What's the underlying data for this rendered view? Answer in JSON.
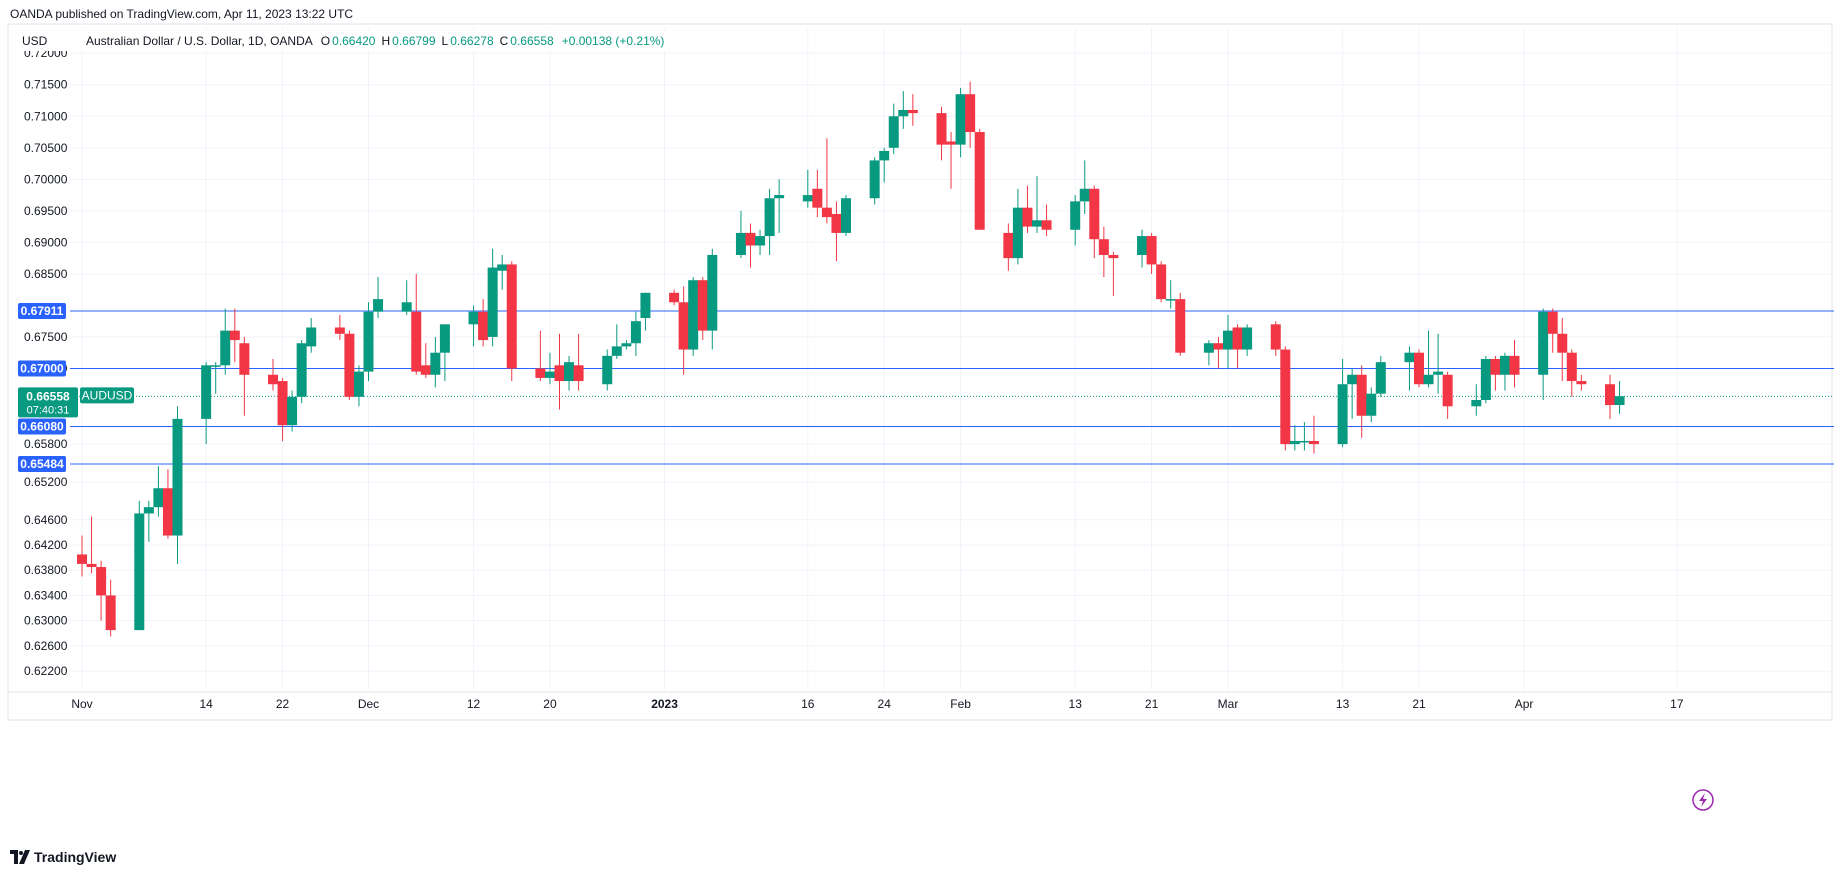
{
  "header": {
    "published": "OANDA published on TradingView.com, Apr 11, 2023 13:22 UTC"
  },
  "footer": {
    "brand": "TradingView",
    "logo_icon": "tradingview-logo-icon"
  },
  "legend": {
    "currency": "USD",
    "symbol_name": "Australian Dollar / U.S. Dollar, 1D, OANDA",
    "o_label": "O",
    "o_value": "0.66420",
    "h_label": "H",
    "h_value": "0.66799",
    "l_label": "L",
    "l_value": "0.66278",
    "c_label": "C",
    "c_value": "0.66558",
    "change": "+0.00138 (+0.21%)"
  },
  "colors": {
    "up": "#089981",
    "down": "#f23645",
    "hline": "#2962ff",
    "grid": "#f0f3fa",
    "text": "#131722"
  },
  "chart_data": {
    "type": "candlestick",
    "symbol": "AUDUSD",
    "ylim": [
      0.619,
      0.724
    ],
    "ytick_labels": [
      "0.72000",
      "0.71500",
      "0.71000",
      "0.70500",
      "0.70000",
      "0.69500",
      "0.69000",
      "0.68500",
      "0.67500",
      "0.67000",
      "0.65800",
      "0.65200",
      "0.64600",
      "0.64200",
      "0.63800",
      "0.63400",
      "0.63000",
      "0.62600",
      "0.62200"
    ],
    "xtick_labels": [
      {
        "label": "Nov",
        "date": "2022-11-01"
      },
      {
        "label": "14",
        "date": "2022-11-14"
      },
      {
        "label": "22",
        "date": "2022-11-22"
      },
      {
        "label": "Dec",
        "date": "2022-12-01"
      },
      {
        "label": "12",
        "date": "2022-12-12"
      },
      {
        "label": "20",
        "date": "2022-12-20"
      },
      {
        "label": "2023",
        "date": "2023-01-01"
      },
      {
        "label": "16",
        "date": "2023-01-16"
      },
      {
        "label": "24",
        "date": "2023-01-24"
      },
      {
        "label": "Feb",
        "date": "2023-02-01"
      },
      {
        "label": "13",
        "date": "2023-02-13"
      },
      {
        "label": "21",
        "date": "2023-02-21"
      },
      {
        "label": "Mar",
        "date": "2023-03-01"
      },
      {
        "label": "13",
        "date": "2023-03-13"
      },
      {
        "label": "21",
        "date": "2023-03-21"
      },
      {
        "label": "Apr",
        "date": "2023-04-01"
      },
      {
        "label": "17",
        "date": "2023-04-17"
      }
    ],
    "horizontal_lines": [
      {
        "value": 0.67911,
        "label": "0.67911"
      },
      {
        "value": 0.67,
        "label": "0.67000"
      },
      {
        "value": 0.6608,
        "label": "0.66080"
      },
      {
        "value": 0.65484,
        "label": "0.65484"
      }
    ],
    "last_price": {
      "value": 0.66558,
      "label": "0.66558",
      "countdown": "07:40:31",
      "symbol": "AUDUSD"
    },
    "candles": [
      {
        "d": "2022-11-01",
        "o": 0.6405,
        "h": 0.6435,
        "l": 0.637,
        "c": 0.639
      },
      {
        "d": "2022-11-02",
        "o": 0.639,
        "h": 0.6465,
        "l": 0.6375,
        "c": 0.6385
      },
      {
        "d": "2022-11-03",
        "o": 0.6385,
        "h": 0.6395,
        "l": 0.63,
        "c": 0.634
      },
      {
        "d": "2022-11-04",
        "o": 0.634,
        "h": 0.6365,
        "l": 0.6275,
        "c": 0.6285
      },
      {
        "d": "2022-11-07",
        "o": 0.6285,
        "h": 0.649,
        "l": 0.6285,
        "c": 0.647
      },
      {
        "d": "2022-11-08",
        "o": 0.647,
        "h": 0.649,
        "l": 0.6425,
        "c": 0.648
      },
      {
        "d": "2022-11-09",
        "o": 0.648,
        "h": 0.6545,
        "l": 0.6465,
        "c": 0.651
      },
      {
        "d": "2022-11-10",
        "o": 0.651,
        "h": 0.654,
        "l": 0.643,
        "c": 0.6435
      },
      {
        "d": "2022-11-11",
        "o": 0.6435,
        "h": 0.664,
        "l": 0.639,
        "c": 0.662
      },
      {
        "d": "2022-11-14",
        "o": 0.662,
        "h": 0.671,
        "l": 0.658,
        "c": 0.6705
      },
      {
        "d": "2022-11-15",
        "o": 0.6705,
        "h": 0.671,
        "l": 0.666,
        "c": 0.6705
      },
      {
        "d": "2022-11-16",
        "o": 0.6705,
        "h": 0.6795,
        "l": 0.669,
        "c": 0.676
      },
      {
        "d": "2022-11-17",
        "o": 0.676,
        "h": 0.6795,
        "l": 0.671,
        "c": 0.6745
      },
      {
        "d": "2022-11-18",
        "o": 0.674,
        "h": 0.675,
        "l": 0.6625,
        "c": 0.669
      },
      {
        "d": "2022-11-21",
        "o": 0.669,
        "h": 0.6715,
        "l": 0.6665,
        "c": 0.6675
      },
      {
        "d": "2022-11-22",
        "o": 0.668,
        "h": 0.6685,
        "l": 0.6585,
        "c": 0.661
      },
      {
        "d": "2022-11-23",
        "o": 0.661,
        "h": 0.6665,
        "l": 0.66,
        "c": 0.6655
      },
      {
        "d": "2022-11-24",
        "o": 0.6655,
        "h": 0.6745,
        "l": 0.6645,
        "c": 0.674
      },
      {
        "d": "2022-11-25",
        "o": 0.6735,
        "h": 0.678,
        "l": 0.6725,
        "c": 0.6765
      },
      {
        "d": "2022-11-28",
        "o": 0.6765,
        "h": 0.6785,
        "l": 0.6745,
        "c": 0.6755
      },
      {
        "d": "2022-11-29",
        "o": 0.6755,
        "h": 0.676,
        "l": 0.665,
        "c": 0.6655
      },
      {
        "d": "2022-11-30",
        "o": 0.6655,
        "h": 0.6705,
        "l": 0.664,
        "c": 0.6695
      },
      {
        "d": "2022-12-01",
        "o": 0.6695,
        "h": 0.6805,
        "l": 0.668,
        "c": 0.679
      },
      {
        "d": "2022-12-02",
        "o": 0.679,
        "h": 0.6845,
        "l": 0.678,
        "c": 0.681
      },
      {
        "d": "2022-12-05",
        "o": 0.679,
        "h": 0.684,
        "l": 0.6785,
        "c": 0.6805
      },
      {
        "d": "2022-12-06",
        "o": 0.679,
        "h": 0.685,
        "l": 0.669,
        "c": 0.6695
      },
      {
        "d": "2022-12-07",
        "o": 0.6705,
        "h": 0.674,
        "l": 0.6685,
        "c": 0.669
      },
      {
        "d": "2022-12-08",
        "o": 0.669,
        "h": 0.675,
        "l": 0.667,
        "c": 0.6725
      },
      {
        "d": "2022-12-09",
        "o": 0.6725,
        "h": 0.677,
        "l": 0.668,
        "c": 0.677
      },
      {
        "d": "2022-12-12",
        "o": 0.677,
        "h": 0.68,
        "l": 0.6735,
        "c": 0.679
      },
      {
        "d": "2022-12-13",
        "o": 0.679,
        "h": 0.681,
        "l": 0.6735,
        "c": 0.6745
      },
      {
        "d": "2022-12-14",
        "o": 0.675,
        "h": 0.689,
        "l": 0.6735,
        "c": 0.686
      },
      {
        "d": "2022-12-15",
        "o": 0.6855,
        "h": 0.688,
        "l": 0.6825,
        "c": 0.6865
      },
      {
        "d": "2022-12-16",
        "o": 0.6865,
        "h": 0.687,
        "l": 0.668,
        "c": 0.67
      },
      {
        "d": "2022-12-19",
        "o": 0.67,
        "h": 0.676,
        "l": 0.668,
        "c": 0.6685
      },
      {
        "d": "2022-12-20",
        "o": 0.6685,
        "h": 0.6725,
        "l": 0.6675,
        "c": 0.6695
      },
      {
        "d": "2022-12-21",
        "o": 0.6705,
        "h": 0.6755,
        "l": 0.6635,
        "c": 0.668
      },
      {
        "d": "2022-12-22",
        "o": 0.668,
        "h": 0.672,
        "l": 0.6665,
        "c": 0.671
      },
      {
        "d": "2022-12-23",
        "o": 0.6705,
        "h": 0.6755,
        "l": 0.6665,
        "c": 0.668
      },
      {
        "d": "2022-12-26",
        "o": 0.6675,
        "h": 0.673,
        "l": 0.6665,
        "c": 0.672
      },
      {
        "d": "2022-12-27",
        "o": 0.672,
        "h": 0.677,
        "l": 0.6715,
        "c": 0.6735
      },
      {
        "d": "2022-12-28",
        "o": 0.6735,
        "h": 0.6745,
        "l": 0.673,
        "c": 0.674
      },
      {
        "d": "2022-12-29",
        "o": 0.674,
        "h": 0.679,
        "l": 0.672,
        "c": 0.6775
      },
      {
        "d": "2022-12-30",
        "o": 0.678,
        "h": 0.682,
        "l": 0.676,
        "c": 0.682
      },
      {
        "d": "2023-01-02",
        "o": 0.682,
        "h": 0.6825,
        "l": 0.68,
        "c": 0.6805
      },
      {
        "d": "2023-01-03",
        "o": 0.6805,
        "h": 0.683,
        "l": 0.669,
        "c": 0.673
      },
      {
        "d": "2023-01-04",
        "o": 0.673,
        "h": 0.6845,
        "l": 0.672,
        "c": 0.684
      },
      {
        "d": "2023-01-05",
        "o": 0.684,
        "h": 0.6845,
        "l": 0.6745,
        "c": 0.676
      },
      {
        "d": "2023-01-06",
        "o": 0.676,
        "h": 0.689,
        "l": 0.673,
        "c": 0.688
      },
      {
        "d": "2023-01-09",
        "o": 0.688,
        "h": 0.695,
        "l": 0.6875,
        "c": 0.6915
      },
      {
        "d": "2023-01-10",
        "o": 0.6915,
        "h": 0.693,
        "l": 0.686,
        "c": 0.6895
      },
      {
        "d": "2023-01-11",
        "o": 0.6895,
        "h": 0.692,
        "l": 0.688,
        "c": 0.691
      },
      {
        "d": "2023-01-12",
        "o": 0.691,
        "h": 0.6985,
        "l": 0.688,
        "c": 0.697
      },
      {
        "d": "2023-01-13",
        "o": 0.697,
        "h": 0.7,
        "l": 0.6915,
        "c": 0.6975
      },
      {
        "d": "2023-01-16",
        "o": 0.6965,
        "h": 0.7015,
        "l": 0.6955,
        "c": 0.6975
      },
      {
        "d": "2023-01-17",
        "o": 0.6985,
        "h": 0.7015,
        "l": 0.694,
        "c": 0.6955
      },
      {
        "d": "2023-01-18",
        "o": 0.6955,
        "h": 0.7065,
        "l": 0.693,
        "c": 0.694
      },
      {
        "d": "2023-01-19",
        "o": 0.6945,
        "h": 0.6965,
        "l": 0.687,
        "c": 0.6915
      },
      {
        "d": "2023-01-20",
        "o": 0.6915,
        "h": 0.6975,
        "l": 0.691,
        "c": 0.697
      },
      {
        "d": "2023-01-23",
        "o": 0.697,
        "h": 0.7035,
        "l": 0.696,
        "c": 0.703
      },
      {
        "d": "2023-01-24",
        "o": 0.703,
        "h": 0.705,
        "l": 0.6995,
        "c": 0.7045
      },
      {
        "d": "2023-01-25",
        "o": 0.705,
        "h": 0.712,
        "l": 0.704,
        "c": 0.71
      },
      {
        "d": "2023-01-26",
        "o": 0.71,
        "h": 0.714,
        "l": 0.708,
        "c": 0.711
      },
      {
        "d": "2023-01-27",
        "o": 0.711,
        "h": 0.7135,
        "l": 0.7085,
        "c": 0.7105
      },
      {
        "d": "2023-01-30",
        "o": 0.7105,
        "h": 0.7115,
        "l": 0.703,
        "c": 0.7055
      },
      {
        "d": "2023-01-31",
        "o": 0.706,
        "h": 0.7075,
        "l": 0.6985,
        "c": 0.7055
      },
      {
        "d": "2023-02-01",
        "o": 0.7055,
        "h": 0.7145,
        "l": 0.7035,
        "c": 0.7135
      },
      {
        "d": "2023-02-02",
        "o": 0.7135,
        "h": 0.7155,
        "l": 0.705,
        "c": 0.7075
      },
      {
        "d": "2023-02-03",
        "o": 0.7075,
        "h": 0.708,
        "l": 0.692,
        "c": 0.692
      },
      {
        "d": "2023-02-06",
        "o": 0.6915,
        "h": 0.693,
        "l": 0.6855,
        "c": 0.6875
      },
      {
        "d": "2023-02-07",
        "o": 0.6875,
        "h": 0.6985,
        "l": 0.6865,
        "c": 0.6955
      },
      {
        "d": "2023-02-08",
        "o": 0.6955,
        "h": 0.699,
        "l": 0.6915,
        "c": 0.6925
      },
      {
        "d": "2023-02-09",
        "o": 0.6925,
        "h": 0.7005,
        "l": 0.6915,
        "c": 0.6935
      },
      {
        "d": "2023-02-10",
        "o": 0.6935,
        "h": 0.696,
        "l": 0.691,
        "c": 0.692
      },
      {
        "d": "2023-02-13",
        "o": 0.692,
        "h": 0.6975,
        "l": 0.6895,
        "c": 0.6965
      },
      {
        "d": "2023-02-14",
        "o": 0.6965,
        "h": 0.703,
        "l": 0.6945,
        "c": 0.6985
      },
      {
        "d": "2023-02-15",
        "o": 0.6985,
        "h": 0.699,
        "l": 0.6875,
        "c": 0.6905
      },
      {
        "d": "2023-02-16",
        "o": 0.6905,
        "h": 0.6925,
        "l": 0.6845,
        "c": 0.688
      },
      {
        "d": "2023-02-17",
        "o": 0.688,
        "h": 0.6885,
        "l": 0.6815,
        "c": 0.6875
      },
      {
        "d": "2023-02-20",
        "o": 0.688,
        "h": 0.692,
        "l": 0.686,
        "c": 0.691
      },
      {
        "d": "2023-02-21",
        "o": 0.691,
        "h": 0.6915,
        "l": 0.685,
        "c": 0.6865
      },
      {
        "d": "2023-02-22",
        "o": 0.6865,
        "h": 0.687,
        "l": 0.6805,
        "c": 0.681
      },
      {
        "d": "2023-02-23",
        "o": 0.681,
        "h": 0.684,
        "l": 0.6795,
        "c": 0.681
      },
      {
        "d": "2023-02-24",
        "o": 0.681,
        "h": 0.682,
        "l": 0.672,
        "c": 0.6725
      },
      {
        "d": "2023-02-27",
        "o": 0.6725,
        "h": 0.6745,
        "l": 0.6705,
        "c": 0.674
      },
      {
        "d": "2023-02-28",
        "o": 0.674,
        "h": 0.675,
        "l": 0.67,
        "c": 0.673
      },
      {
        "d": "2023-03-01",
        "o": 0.673,
        "h": 0.6785,
        "l": 0.67,
        "c": 0.676
      },
      {
        "d": "2023-03-02",
        "o": 0.6765,
        "h": 0.677,
        "l": 0.67,
        "c": 0.673
      },
      {
        "d": "2023-03-03",
        "o": 0.673,
        "h": 0.677,
        "l": 0.672,
        "c": 0.6765
      },
      {
        "d": "2023-03-06",
        "o": 0.677,
        "h": 0.6775,
        "l": 0.672,
        "c": 0.673
      },
      {
        "d": "2023-03-07",
        "o": 0.673,
        "h": 0.6735,
        "l": 0.657,
        "c": 0.658
      },
      {
        "d": "2023-03-08",
        "o": 0.658,
        "h": 0.661,
        "l": 0.657,
        "c": 0.6585
      },
      {
        "d": "2023-03-09",
        "o": 0.6585,
        "h": 0.6615,
        "l": 0.657,
        "c": 0.6585
      },
      {
        "d": "2023-03-10",
        "o": 0.6585,
        "h": 0.6625,
        "l": 0.6565,
        "c": 0.658
      },
      {
        "d": "2023-03-13",
        "o": 0.658,
        "h": 0.6715,
        "l": 0.6575,
        "c": 0.6675
      },
      {
        "d": "2023-03-14",
        "o": 0.6675,
        "h": 0.67,
        "l": 0.662,
        "c": 0.669
      },
      {
        "d": "2023-03-15",
        "o": 0.669,
        "h": 0.6705,
        "l": 0.659,
        "c": 0.6625
      },
      {
        "d": "2023-03-16",
        "o": 0.6625,
        "h": 0.667,
        "l": 0.6615,
        "c": 0.666
      },
      {
        "d": "2023-03-17",
        "o": 0.666,
        "h": 0.672,
        "l": 0.6655,
        "c": 0.671
      },
      {
        "d": "2023-03-20",
        "o": 0.671,
        "h": 0.6735,
        "l": 0.6665,
        "c": 0.6725
      },
      {
        "d": "2023-03-21",
        "o": 0.6725,
        "h": 0.673,
        "l": 0.667,
        "c": 0.6675
      },
      {
        "d": "2023-03-22",
        "o": 0.6675,
        "h": 0.676,
        "l": 0.667,
        "c": 0.669
      },
      {
        "d": "2023-03-23",
        "o": 0.669,
        "h": 0.6755,
        "l": 0.666,
        "c": 0.6695
      },
      {
        "d": "2023-03-24",
        "o": 0.669,
        "h": 0.6695,
        "l": 0.662,
        "c": 0.664
      },
      {
        "d": "2023-03-27",
        "o": 0.664,
        "h": 0.6675,
        "l": 0.6625,
        "c": 0.665
      },
      {
        "d": "2023-03-28",
        "o": 0.665,
        "h": 0.672,
        "l": 0.6645,
        "c": 0.6715
      },
      {
        "d": "2023-03-29",
        "o": 0.6715,
        "h": 0.672,
        "l": 0.6665,
        "c": 0.669
      },
      {
        "d": "2023-03-30",
        "o": 0.669,
        "h": 0.6725,
        "l": 0.6665,
        "c": 0.672
      },
      {
        "d": "2023-03-31",
        "o": 0.672,
        "h": 0.6745,
        "l": 0.667,
        "c": 0.669
      },
      {
        "d": "2023-04-03",
        "o": 0.669,
        "h": 0.6795,
        "l": 0.665,
        "c": 0.679
      },
      {
        "d": "2023-04-04",
        "o": 0.679,
        "h": 0.6795,
        "l": 0.6725,
        "c": 0.6755
      },
      {
        "d": "2023-04-05",
        "o": 0.6755,
        "h": 0.678,
        "l": 0.668,
        "c": 0.6725
      },
      {
        "d": "2023-04-06",
        "o": 0.6725,
        "h": 0.673,
        "l": 0.6655,
        "c": 0.668
      },
      {
        "d": "2023-04-07",
        "o": 0.668,
        "h": 0.669,
        "l": 0.6665,
        "c": 0.6675
      },
      {
        "d": "2023-04-10",
        "o": 0.6675,
        "h": 0.669,
        "l": 0.662,
        "c": 0.6642
      },
      {
        "d": "2023-04-11",
        "o": 0.6642,
        "h": 0.668,
        "l": 0.6628,
        "c": 0.6656
      }
    ]
  }
}
